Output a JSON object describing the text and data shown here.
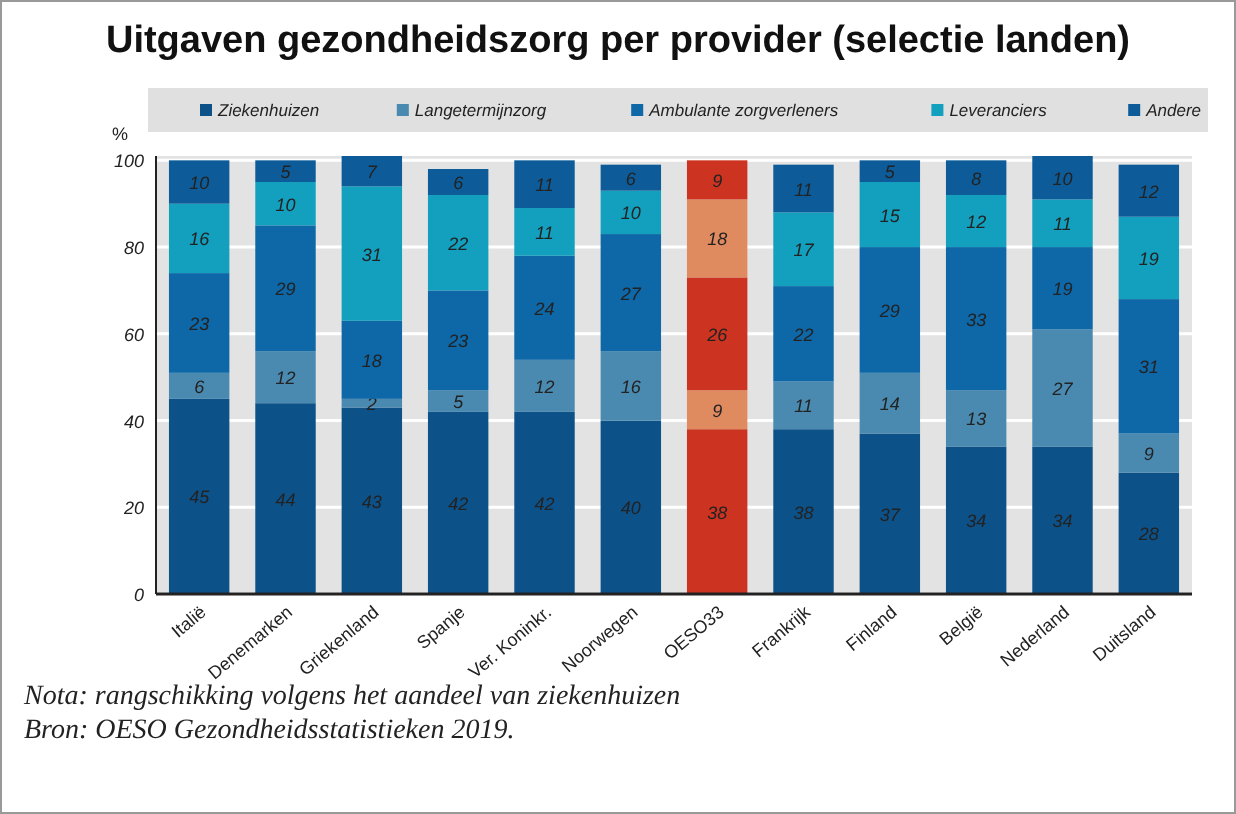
{
  "chart_data": {
    "type": "bar",
    "title": "Uitgaven gezondheidszorg per provider (selectie landen)",
    "ylabel": "%",
    "categories": [
      "Italië",
      "Denemarken",
      "Griekenland",
      "Spanje",
      "Ver. Koninkr.",
      "Noorwegen",
      "OESO33",
      "Frankrijk",
      "Finland",
      "België",
      "Nederland",
      "Duitsland"
    ],
    "series": [
      {
        "name": "Ziekenhuizen",
        "color": "#0d5189",
        "colors": [
          "#0d5189",
          "#0d5189",
          "#0d5189",
          "#0d5189",
          "#0d5189",
          "#0d5189",
          "#cc3320",
          "#0d5189",
          "#0d5189",
          "#0d5189",
          "#0d5189",
          "#0d5189"
        ],
        "values": [
          45,
          44,
          43,
          42,
          42,
          40,
          38,
          38,
          37,
          34,
          34,
          28
        ]
      },
      {
        "name": "Langetermijnzorg",
        "color": "#4a89b0",
        "colors": [
          "#4a89b0",
          "#4a89b0",
          "#4a89b0",
          "#4a89b0",
          "#4a89b0",
          "#4a89b0",
          "#e08a60",
          "#4a89b0",
          "#4a89b0",
          "#4a89b0",
          "#4a89b0",
          "#4a89b0"
        ],
        "values": [
          6,
          12,
          2,
          5,
          12,
          16,
          9,
          11,
          14,
          13,
          27,
          9
        ]
      },
      {
        "name": "Ambulante zorgverleners",
        "color": "#0e67a6",
        "colors": [
          "#0e67a6",
          "#0e67a6",
          "#0e67a6",
          "#0e67a6",
          "#0e67a6",
          "#0e67a6",
          "#cc3320",
          "#0e67a6",
          "#0e67a6",
          "#0e67a6",
          "#0e67a6",
          "#0e67a6"
        ],
        "values": [
          23,
          29,
          18,
          23,
          24,
          27,
          26,
          22,
          29,
          33,
          19,
          31
        ]
      },
      {
        "name": "Leveranciers",
        "color": "#12a0be",
        "colors": [
          "#12a0be",
          "#12a0be",
          "#12a0be",
          "#12a0be",
          "#12a0be",
          "#12a0be",
          "#e08a60",
          "#12a0be",
          "#12a0be",
          "#12a0be",
          "#12a0be",
          "#12a0be"
        ],
        "values": [
          16,
          10,
          31,
          22,
          11,
          10,
          18,
          17,
          15,
          12,
          11,
          19
        ]
      },
      {
        "name": "Andere",
        "color": "#0d5c99",
        "colors": [
          "#0d5c99",
          "#0d5c99",
          "#0d5c99",
          "#0d5c99",
          "#0d5c99",
          "#0d5c99",
          "#cc3320",
          "#0d5c99",
          "#0d5c99",
          "#0d5c99",
          "#0d5c99",
          "#0d5c99"
        ],
        "values": [
          10,
          5,
          7,
          6,
          11,
          6,
          9,
          11,
          5,
          8,
          10,
          12
        ]
      }
    ],
    "stacked": true,
    "data_labels": true,
    "ylim": [
      0,
      101
    ],
    "yticks": [
      0,
      20,
      40,
      60,
      80,
      100
    ],
    "grid": "y",
    "legend": "top",
    "annotations": [
      "Nota: rangschikking volgens het aandeel van ziekenhuizen",
      "Bron: OESO Gezondheidsstatistieken 2019."
    ]
  }
}
